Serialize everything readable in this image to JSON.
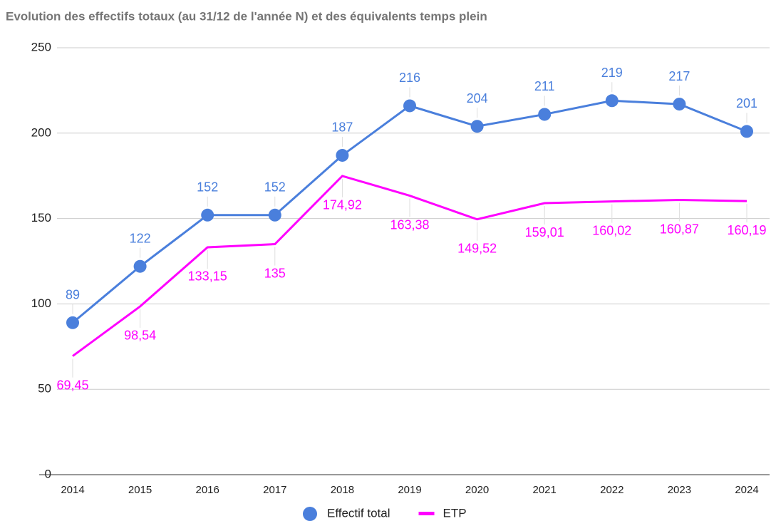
{
  "chart_data": {
    "type": "line",
    "title": "Evolution des effectifs totaux (au 31/12 de l'année N) et des équivalents temps plein",
    "categories": [
      "2014",
      "2015",
      "2016",
      "2017",
      "2018",
      "2019",
      "2020",
      "2021",
      "2022",
      "2023",
      "2024"
    ],
    "series": [
      {
        "name": "Effectif total",
        "color": "#4a7fdc",
        "marker": "circle",
        "values": [
          89,
          122,
          152,
          152,
          187,
          216,
          204,
          211,
          219,
          217,
          201
        ]
      },
      {
        "name": "ETP",
        "color": "#ff00ff",
        "marker": "none",
        "values": [
          69.45,
          98.54,
          133.15,
          135,
          174.92,
          163.38,
          149.52,
          159.01,
          160.02,
          160.87,
          160.19
        ],
        "value_labels": [
          "69,45",
          "98,54",
          "133,15",
          "135",
          "174,92",
          "163,38",
          "149,52",
          "159,01",
          "160,02",
          "160,87",
          "160,19"
        ]
      }
    ],
    "ylim": [
      0,
      250
    ],
    "yticks": [
      0,
      50,
      100,
      150,
      200,
      250
    ],
    "grid": true,
    "legend": "bottom"
  }
}
